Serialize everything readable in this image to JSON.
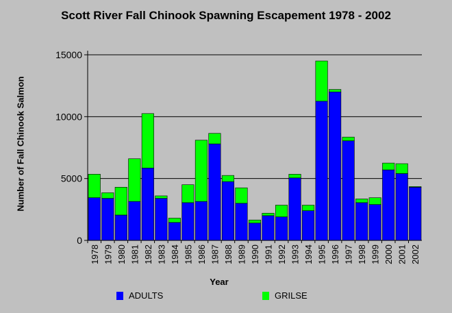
{
  "chart_data": {
    "type": "bar",
    "stacked": true,
    "title": "Scott River Fall Chinook Spawning Escapement 1978 - 2002",
    "xlabel": "Year",
    "ylabel": "Number of Fall Chinook Salmon",
    "ylim": [
      0,
      15000
    ],
    "yticks": [
      "0",
      "5000",
      "10000",
      "15000"
    ],
    "grid": true,
    "legend_position": "bottom",
    "categories": [
      "1978",
      "1979",
      "1980",
      "1981",
      "1982",
      "1983",
      "1984",
      "1985",
      "1986",
      "1987",
      "1988",
      "1989",
      "1990",
      "1991",
      "1992",
      "1993",
      "1994",
      "1995",
      "1996",
      "1997",
      "1998",
      "1999",
      "2000",
      "2001",
      "2002"
    ],
    "series": [
      {
        "name": "ADULTS",
        "color": "#0000ff",
        "values": [
          3450,
          3400,
          2050,
          3150,
          5850,
          3400,
          1450,
          3050,
          3150,
          7800,
          4750,
          3000,
          1400,
          2000,
          1900,
          5050,
          2400,
          11250,
          12000,
          8050,
          3050,
          2900,
          5700,
          5400,
          4300
        ]
      },
      {
        "name": "GRILSE",
        "color": "#00ff00",
        "values": [
          1900,
          450,
          2250,
          3450,
          4400,
          200,
          350,
          1450,
          4950,
          850,
          500,
          1250,
          250,
          200,
          950,
          300,
          450,
          3250,
          200,
          300,
          300,
          550,
          550,
          800,
          50
        ]
      }
    ]
  }
}
